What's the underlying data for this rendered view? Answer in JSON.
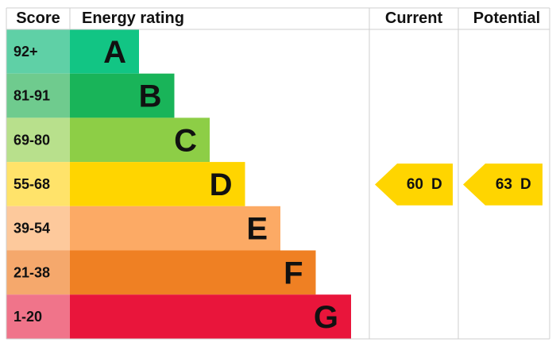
{
  "header": {
    "score": "Score",
    "rating": "Energy rating",
    "current": "Current",
    "potential": "Potential"
  },
  "bands": [
    {
      "score": "92+",
      "letter": "A",
      "color": "#12c584",
      "light": "#5fd0a6"
    },
    {
      "score": "81-91",
      "letter": "B",
      "color": "#19b459",
      "light": "#6fcb8e"
    },
    {
      "score": "69-80",
      "letter": "C",
      "color": "#8dce46",
      "light": "#b8e08c"
    },
    {
      "score": "55-68",
      "letter": "D",
      "color": "#ffd500",
      "light": "#ffe36a"
    },
    {
      "score": "39-54",
      "letter": "E",
      "color": "#fcaa65",
      "light": "#fdc99c"
    },
    {
      "score": "21-38",
      "letter": "F",
      "color": "#ef8023",
      "light": "#f5a86c"
    },
    {
      "score": "1-20",
      "letter": "G",
      "color": "#e9153b",
      "light": "#f0748a"
    }
  ],
  "current": {
    "value": 60,
    "band": "D"
  },
  "potential": {
    "value": 63,
    "band": "D"
  }
}
